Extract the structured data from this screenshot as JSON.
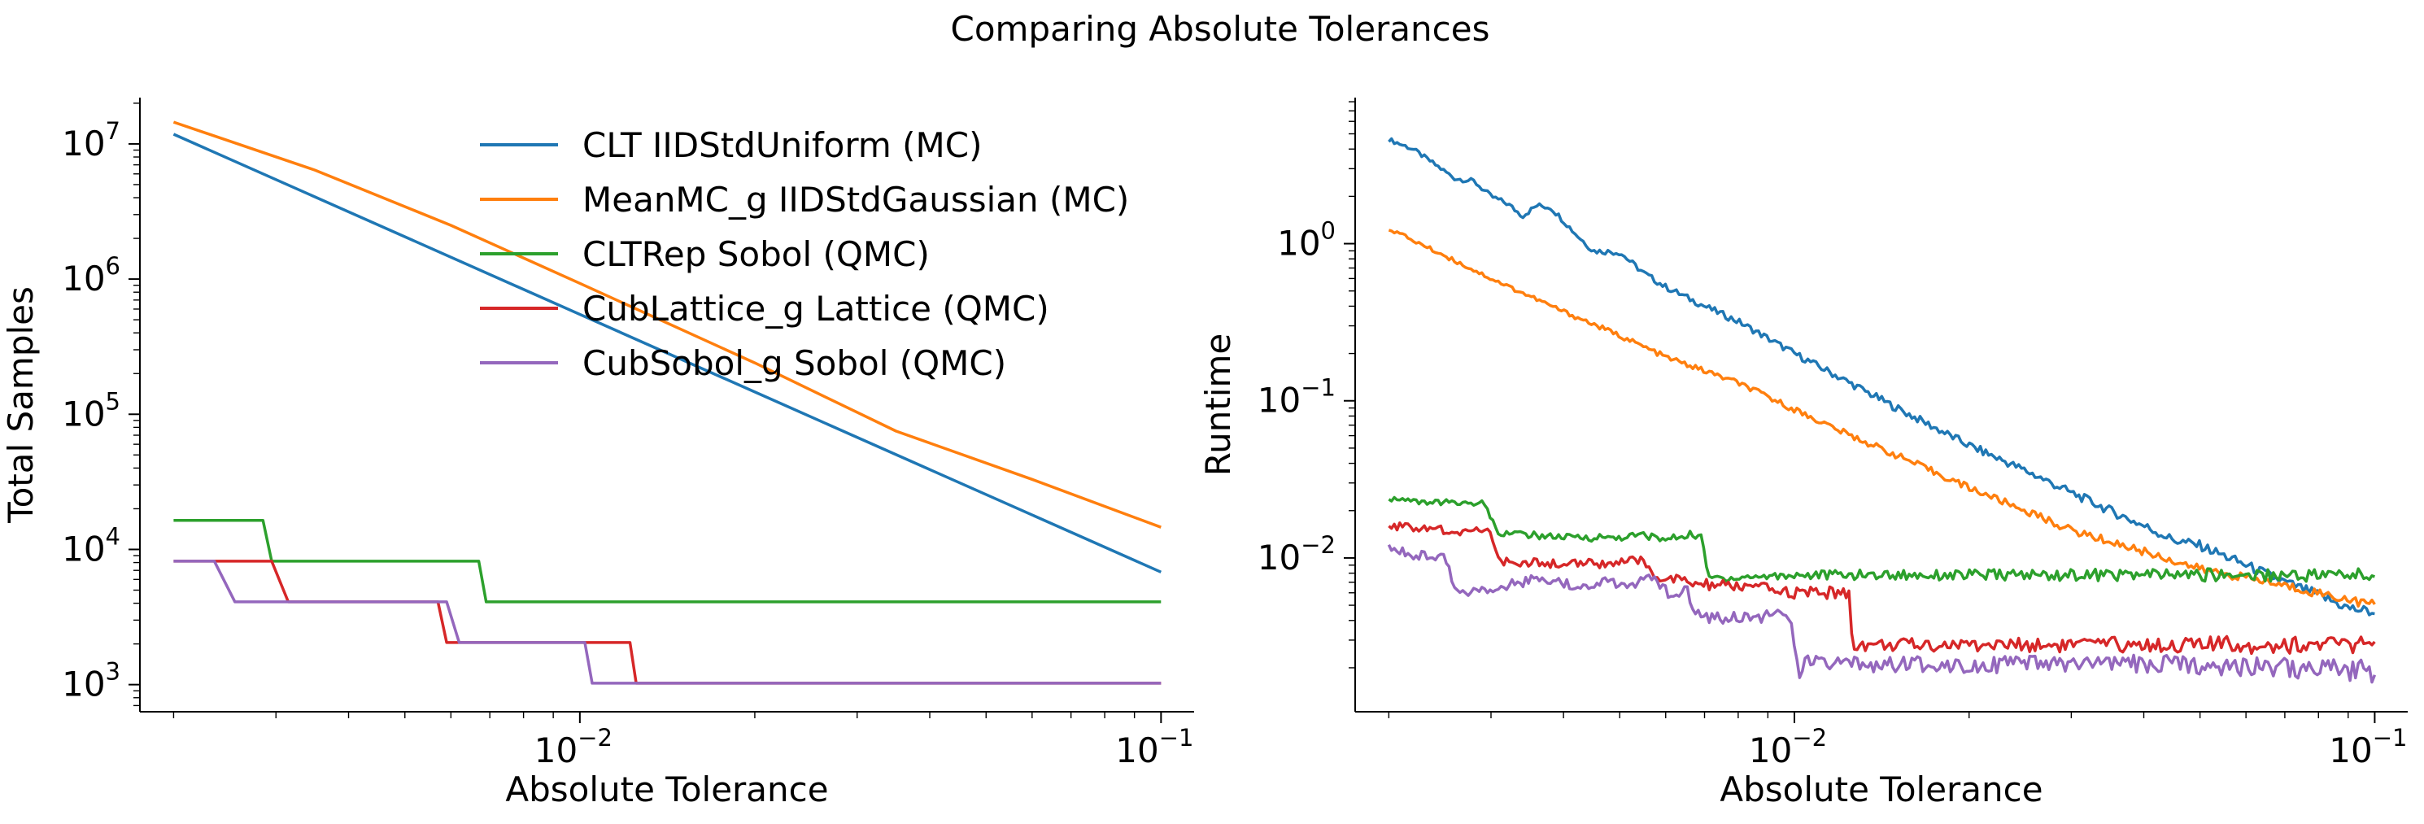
{
  "figure": {
    "suptitle": "Comparing Absolute Tolerances"
  },
  "colors": {
    "clt_iid": "#1f77b4",
    "meanmc": "#ff7f0e",
    "cltrep": "#2ca02c",
    "cublattice": "#d62728",
    "cubsobol": "#9467bd"
  },
  "legend": {
    "placement": "upper-center of left panel",
    "entries": [
      "CLT IIDStdUniform (MC)",
      "MeanMC_g IIDStdGaussian (MC)",
      "CLTRep Sobol (QMC)",
      "CubLattice_g Lattice (QMC)",
      "CubSobol_g Sobol (QMC)"
    ]
  },
  "chart_data": [
    {
      "type": "line",
      "xscale": "log",
      "yscale": "log",
      "xlabel": "Absolute Tolerance",
      "ylabel": "Total Samples",
      "xlim": [
        0.00175,
        0.114
      ],
      "ylim": [
        630,
        22000000
      ],
      "grid": false,
      "xticks": [
        {
          "value": 0.01,
          "base": "10",
          "exp": "−2"
        },
        {
          "value": 0.1,
          "base": "10",
          "exp": "−1"
        }
      ],
      "yticks": [
        {
          "value": 1000,
          "base": "10",
          "exp": "3"
        },
        {
          "value": 10000,
          "base": "10",
          "exp": "4"
        },
        {
          "value": 100000,
          "base": "10",
          "exp": "5"
        },
        {
          "value": 1000000,
          "base": "10",
          "exp": "6"
        },
        {
          "value": 10000000,
          "base": "10",
          "exp": "7"
        }
      ],
      "series": [
        {
          "name": "CLT IIDStdUniform (MC)",
          "color_key": "clt_iid",
          "x": [
            0.002,
            0.1
          ],
          "y": [
            11800000,
            6800
          ]
        },
        {
          "name": "MeanMC_g IIDStdGaussian (MC)",
          "color_key": "meanmc",
          "x": [
            0.002,
            0.0035,
            0.006,
            0.01,
            0.02,
            0.035,
            0.06,
            0.1
          ],
          "y": [
            14500000,
            6400000,
            2500000,
            930000,
            240000,
            75000,
            33000,
            14600
          ]
        },
        {
          "name": "CLTRep Sobol (QMC)",
          "color_key": "cltrep",
          "x": [
            0.002,
            0.00285,
            0.00295,
            0.0067,
            0.0069,
            0.1
          ],
          "y": [
            16384,
            16384,
            8192,
            8192,
            4096,
            4096
          ]
        },
        {
          "name": "CubLattice_g Lattice (QMC)",
          "color_key": "cublattice",
          "x": [
            0.002,
            0.00295,
            0.00315,
            0.0057,
            0.0059,
            0.0122,
            0.0125,
            0.1
          ],
          "y": [
            8192,
            8192,
            4096,
            4096,
            2048,
            2048,
            1024,
            1024
          ]
        },
        {
          "name": "CubSobol_g Sobol (QMC)",
          "color_key": "cubsobol",
          "x": [
            0.002,
            0.00235,
            0.00255,
            0.0059,
            0.0062,
            0.0102,
            0.0105,
            0.1
          ],
          "y": [
            8192,
            8192,
            4096,
            4096,
            2048,
            2048,
            1024,
            1024
          ]
        }
      ]
    },
    {
      "type": "line",
      "xscale": "log",
      "yscale": "log",
      "xlabel": "Absolute Tolerance",
      "ylabel": "Runtime",
      "xlim": [
        0.00175,
        0.114
      ],
      "ylim": [
        0.00105,
        8.5
      ],
      "grid": false,
      "xticks": [
        {
          "value": 0.01,
          "base": "10",
          "exp": "−2"
        },
        {
          "value": 0.1,
          "base": "10",
          "exp": "−1"
        }
      ],
      "yticks": [
        {
          "value": 0.01,
          "base": "10",
          "exp": "−2"
        },
        {
          "value": 0.1,
          "base": "10",
          "exp": "−1"
        },
        {
          "value": 1,
          "base": "10",
          "exp": "0"
        }
      ],
      "series": [
        {
          "name": "CLT IIDStdUniform (MC)",
          "color_key": "clt_iid",
          "x": [
            0.002,
            0.0022,
            0.0024,
            0.0026,
            0.0028,
            0.003,
            0.0032,
            0.0034,
            0.0036,
            0.0038,
            0.004,
            0.0042,
            0.0045,
            0.005,
            0.0055,
            0.006,
            0.007,
            0.008,
            0.01,
            0.012,
            0.015,
            0.02,
            0.025,
            0.03,
            0.035,
            0.04,
            0.045,
            0.05,
            0.06,
            0.07,
            0.08,
            0.09,
            0.1
          ],
          "y": [
            4.6,
            4.0,
            3.2,
            2.6,
            2.5,
            2.0,
            1.8,
            1.5,
            1.75,
            1.7,
            1.4,
            1.15,
            0.9,
            0.88,
            0.65,
            0.53,
            0.4,
            0.32,
            0.2,
            0.14,
            0.09,
            0.052,
            0.036,
            0.026,
            0.02,
            0.016,
            0.013,
            0.012,
            0.009,
            0.007,
            0.0058,
            0.0048,
            0.0045
          ]
        },
        {
          "name": "MeanMC_g IIDStdGaussian (MC)",
          "color_key": "meanmc",
          "x": [
            0.002,
            0.003,
            0.004,
            0.005,
            0.006,
            0.008,
            0.01,
            0.0125,
            0.015,
            0.02,
            0.025,
            0.03,
            0.04,
            0.05,
            0.06,
            0.08,
            0.1
          ],
          "y": [
            1.25,
            0.6,
            0.37,
            0.26,
            0.19,
            0.13,
            0.088,
            0.06,
            0.045,
            0.028,
            0.02,
            0.015,
            0.011,
            0.0085,
            0.0075,
            0.006,
            0.005
          ]
        },
        {
          "name": "CLTRep Sobol (QMC)",
          "color_key": "cltrep",
          "x": [
            0.002,
            0.0023,
            0.0029,
            0.0031,
            0.004,
            0.005,
            0.0055,
            0.006,
            0.0065,
            0.0069,
            0.0071,
            0.008,
            0.01,
            0.02,
            0.05,
            0.1
          ],
          "y": [
            0.024,
            0.0225,
            0.0225,
            0.0145,
            0.0135,
            0.0135,
            0.014,
            0.013,
            0.014,
            0.014,
            0.0075,
            0.0075,
            0.0078,
            0.0078,
            0.0078,
            0.0078
          ]
        },
        {
          "name": "CubLattice_g Lattice (QMC)",
          "color_key": "cublattice",
          "x": [
            0.002,
            0.0025,
            0.003,
            0.0031,
            0.0033,
            0.0035,
            0.0045,
            0.0055,
            0.0058,
            0.006,
            0.0068,
            0.0085,
            0.01,
            0.0115,
            0.0124,
            0.0126,
            0.015,
            0.02,
            0.05,
            0.1
          ],
          "y": [
            0.016,
            0.015,
            0.0145,
            0.0095,
            0.0093,
            0.0093,
            0.0092,
            0.0095,
            0.0075,
            0.0075,
            0.0068,
            0.0065,
            0.006,
            0.006,
            0.006,
            0.0028,
            0.0028,
            0.0028,
            0.0028,
            0.0028
          ]
        },
        {
          "name": "CubSobol_g Sobol (QMC)",
          "color_key": "cubsobol",
          "x": [
            0.002,
            0.0022,
            0.0025,
            0.0026,
            0.003,
            0.0035,
            0.004,
            0.005,
            0.0058,
            0.0062,
            0.0065,
            0.0068,
            0.0072,
            0.009,
            0.0098,
            0.0102,
            0.0105,
            0.011,
            0.015,
            0.02,
            0.05,
            0.1
          ],
          "y": [
            0.012,
            0.0105,
            0.0102,
            0.006,
            0.0065,
            0.0072,
            0.0068,
            0.007,
            0.0072,
            0.0055,
            0.0063,
            0.0045,
            0.0042,
            0.0043,
            0.0042,
            0.0018,
            0.0023,
            0.0021,
            0.0021,
            0.0021,
            0.0021,
            0.0019
          ]
        }
      ]
    }
  ]
}
